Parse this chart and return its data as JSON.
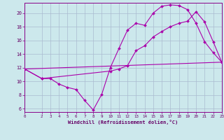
{
  "xlabel": "Windchill (Refroidissement éolien,°C)",
  "bg_color": "#cce8ec",
  "grid_color": "#aabbd0",
  "line_color": "#aa00aa",
  "xlim": [
    0,
    23
  ],
  "ylim": [
    5.5,
    21.5
  ],
  "yticks": [
    6,
    8,
    10,
    12,
    14,
    16,
    18,
    20
  ],
  "xticks": [
    0,
    2,
    3,
    4,
    5,
    6,
    7,
    8,
    9,
    10,
    11,
    12,
    13,
    14,
    15,
    16,
    17,
    18,
    19,
    20,
    21,
    22,
    23
  ],
  "line1": {
    "x": [
      0,
      2,
      3,
      4,
      5,
      6,
      7,
      8,
      9,
      10,
      11,
      12,
      13,
      14,
      15,
      16,
      17,
      18,
      19,
      20,
      21,
      22,
      23
    ],
    "y": [
      11.8,
      10.4,
      10.4,
      9.6,
      9.1,
      8.8,
      7.2,
      5.8,
      8.1,
      12.0,
      14.8,
      17.5,
      18.5,
      18.2,
      20.0,
      21.0,
      21.2,
      21.1,
      20.5,
      18.5,
      15.8,
      14.2,
      12.8
    ]
  },
  "line2": {
    "x": [
      0,
      2,
      10,
      11,
      12,
      13,
      14,
      15,
      16,
      17,
      18,
      19,
      20,
      21,
      22,
      23
    ],
    "y": [
      11.8,
      10.4,
      11.5,
      11.8,
      12.3,
      14.5,
      15.2,
      16.5,
      17.3,
      18.0,
      18.5,
      18.8,
      20.2,
      18.7,
      15.8,
      12.8
    ]
  },
  "line3": {
    "x": [
      0,
      23
    ],
    "y": [
      11.8,
      12.8
    ]
  }
}
